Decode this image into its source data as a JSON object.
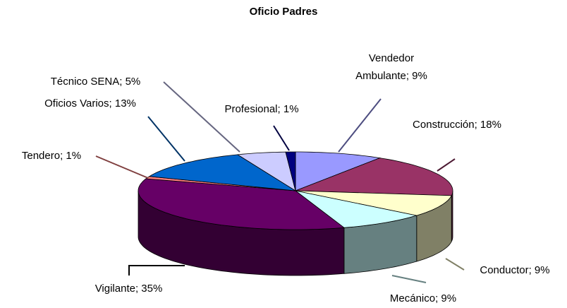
{
  "chart_data": {
    "type": "pie3d",
    "title": "Oficio Padres",
    "values": [
      9,
      18,
      9,
      9,
      35,
      1,
      13,
      5,
      1
    ],
    "value_labels": [
      "Vendedor Ambulante; 9%",
      "Construcción; 18%",
      "Conductor; 9%",
      "Mecánico; 9%",
      "Vigilante; 35%",
      "Tendero; 1%",
      "Oficios Varios; 13%",
      "Técnico SENA; 5%",
      "Profesional; 1%"
    ],
    "colors": [
      "#9999FF",
      "#993366",
      "#FFFFCC",
      "#CCFFFF",
      "#660066",
      "#FF8080",
      "#0066CC",
      "#CCCCFF",
      "#000080"
    ]
  }
}
